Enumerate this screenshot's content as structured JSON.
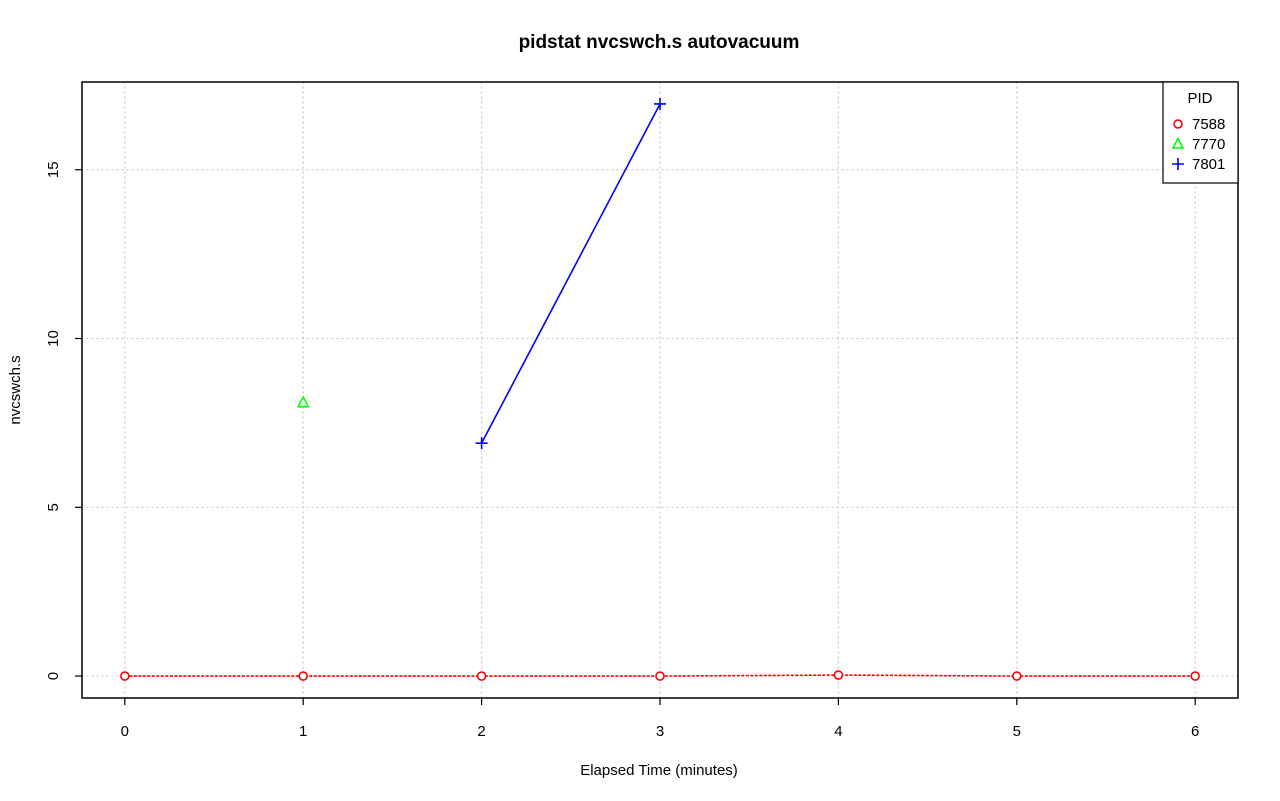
{
  "chart_data": {
    "type": "line",
    "title": "pidstat nvcswch.s autovacuum",
    "xlabel": "Elapsed Time (minutes)",
    "ylabel": "nvcswch.s",
    "xlim": [
      -0.24,
      6.24
    ],
    "ylim": [
      -0.65,
      17.6
    ],
    "x_ticks": [
      0,
      1,
      2,
      3,
      4,
      5,
      6
    ],
    "y_ticks": [
      0,
      5,
      10,
      15
    ],
    "grid": true,
    "legend": {
      "title": "PID",
      "placement": "top-right"
    },
    "series": [
      {
        "name": "7588",
        "color": "#ff0000",
        "marker": "circle",
        "line": "dashed",
        "x": [
          0,
          1,
          2,
          3,
          4,
          5,
          6
        ],
        "y": [
          0,
          0,
          0,
          0,
          0.03,
          0,
          0
        ]
      },
      {
        "name": "7770",
        "color": "#00ff00",
        "marker": "triangle",
        "line": "none",
        "x": [
          1
        ],
        "y": [
          8.1
        ]
      },
      {
        "name": "7801",
        "color": "#0000ff",
        "marker": "plus",
        "line": "solid",
        "x": [
          2,
          3
        ],
        "y": [
          6.9,
          16.95
        ]
      }
    ]
  }
}
